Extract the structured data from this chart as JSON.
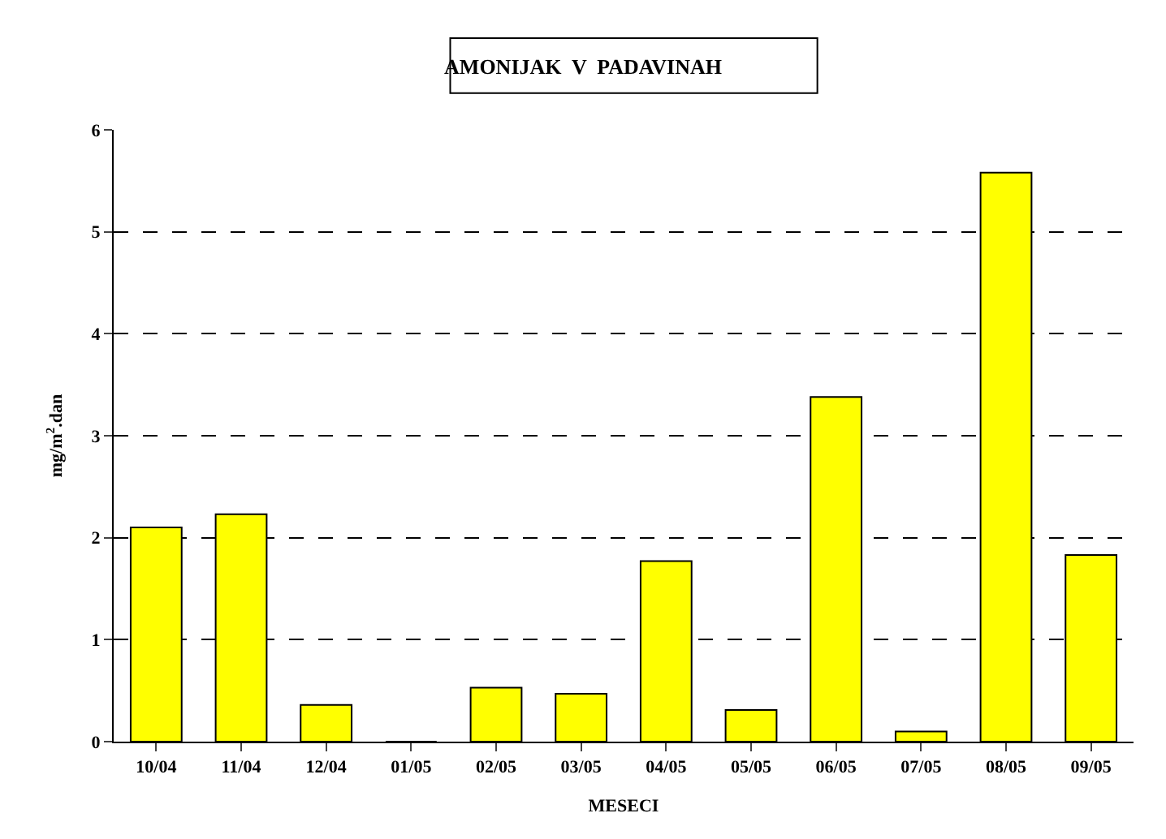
{
  "chart_data": {
    "type": "bar",
    "title": "AMONIJAK  V  PADAVINAH",
    "xlabel": "MESECI",
    "ylabel": "mg/m$^{2}$.dan",
    "categories": [
      "10/04",
      "11/04",
      "12/04",
      "01/05",
      "02/05",
      "03/05",
      "04/05",
      "05/05",
      "06/05",
      "07/05",
      "08/05",
      "09/05"
    ],
    "values": [
      2.1,
      2.23,
      0.36,
      0,
      0.53,
      0.47,
      1.77,
      0.31,
      3.38,
      0.1,
      5.58,
      1.83
    ],
    "color": "#ffff00",
    "ylim": [
      0,
      6
    ],
    "yticks": [
      0,
      1,
      2,
      3,
      4,
      5,
      6
    ],
    "grid": true
  }
}
